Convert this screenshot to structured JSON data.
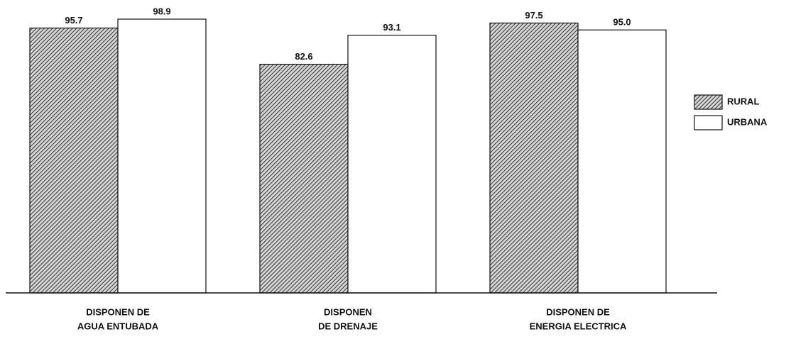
{
  "chart_data": {
    "type": "bar",
    "categories": [
      [
        "DISPONEN DE",
        "AGUA ENTUBADA"
      ],
      [
        "DISPONEN",
        "DE DRENAJE"
      ],
      [
        "DISPONEN DE",
        "ENERGIA ELECTRICA"
      ]
    ],
    "series": [
      {
        "name": "RURAL",
        "color": "#3a3a3a",
        "pattern": "hatch",
        "values": [
          95.7,
          82.6,
          97.5
        ],
        "value_labels": [
          "95.7",
          "82.6",
          "97.5"
        ]
      },
      {
        "name": "URBANA",
        "color": "#ffffff",
        "values": [
          98.9,
          93.1,
          95.0
        ],
        "value_labels": [
          "98.9",
          "93.1",
          "95.0"
        ]
      }
    ],
    "legend": "right"
  }
}
